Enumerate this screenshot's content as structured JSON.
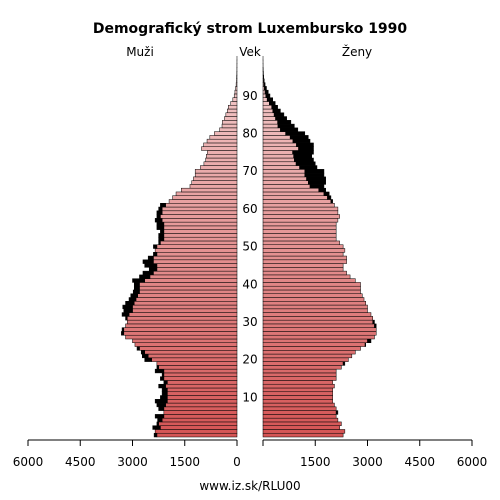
{
  "chart_data": {
    "type": "bar",
    "orientation": "horizontal",
    "title": "Demografický strom Luxembursko 1990",
    "left_label": "Muži",
    "center_label": "Vek",
    "right_label": "Ženy",
    "source": "www.iz.sk/RLU00",
    "x_ticks": [
      "6000",
      "4500",
      "3000",
      "1500",
      "0",
      "1500",
      "3000",
      "4500",
      "6000"
    ],
    "xlim": [
      0,
      6000
    ],
    "age_ticks": [
      "10",
      "20",
      "30",
      "40",
      "50",
      "60",
      "70",
      "80",
      "90"
    ],
    "ages": [
      0,
      1,
      2,
      3,
      4,
      5,
      6,
      7,
      8,
      9,
      10,
      11,
      12,
      13,
      14,
      15,
      16,
      17,
      18,
      19,
      20,
      21,
      22,
      23,
      24,
      25,
      26,
      27,
      28,
      29,
      30,
      31,
      32,
      33,
      34,
      35,
      36,
      37,
      38,
      39,
      40,
      41,
      42,
      43,
      44,
      45,
      46,
      47,
      48,
      49,
      50,
      51,
      52,
      53,
      54,
      55,
      56,
      57,
      58,
      59,
      60,
      61,
      62,
      63,
      64,
      65,
      66,
      67,
      68,
      69,
      70,
      71,
      72,
      73,
      74,
      75,
      76,
      77,
      78,
      79,
      80,
      81,
      82,
      83,
      84,
      85,
      86,
      87,
      88,
      89,
      90,
      91,
      92,
      93,
      94,
      95,
      96,
      97,
      98,
      99,
      100
    ],
    "series": [
      {
        "name": "Muži",
        "color": "#d55555",
        "values": [
          2380,
          2350,
          2420,
          2300,
          2280,
          2350,
          2100,
          2250,
          2300,
          2350,
          2200,
          2150,
          2150,
          2250,
          2100,
          2200,
          2150,
          2350,
          2300,
          2300,
          2650,
          2720,
          2750,
          2870,
          2930,
          3000,
          3200,
          3320,
          3300,
          3200,
          3150,
          3200,
          3300,
          3250,
          3280,
          3200,
          3100,
          3050,
          2980,
          2950,
          2950,
          3000,
          2800,
          2700,
          2520,
          2650,
          2700,
          2550,
          2400,
          2350,
          2400,
          2250,
          2250,
          2250,
          2200,
          2300,
          2300,
          2350,
          2300,
          2300,
          2250,
          2200,
          1950,
          1850,
          1750,
          1600,
          1350,
          1300,
          1250,
          1200,
          1200,
          1050,
          950,
          900,
          880,
          850,
          1020,
          960,
          860,
          780,
          650,
          500,
          430,
          420,
          360,
          320,
          280,
          250,
          180,
          120,
          80,
          60,
          40,
          25,
          15,
          10,
          6,
          4,
          3,
          2,
          1
        ]
      },
      {
        "name": "Ženy",
        "color": "#d55555",
        "values": [
          2300,
          2350,
          2200,
          2250,
          2150,
          2100,
          2150,
          2100,
          2050,
          2000,
          2000,
          2000,
          2000,
          2050,
          2000,
          2100,
          2100,
          2100,
          2250,
          2350,
          2450,
          2550,
          2650,
          2800,
          2950,
          3100,
          3200,
          3250,
          3250,
          3250,
          3200,
          3150,
          3100,
          3000,
          3000,
          2950,
          2900,
          2850,
          2800,
          2800,
          2800,
          2650,
          2500,
          2400,
          2300,
          2300,
          2400,
          2400,
          2300,
          2350,
          2300,
          2200,
          2100,
          2100,
          2100,
          2100,
          2100,
          2150,
          2200,
          2150,
          2150,
          2050,
          2000,
          1950,
          1900,
          1800,
          1750,
          1800,
          1800,
          1750,
          1750,
          1550,
          1500,
          1450,
          1400,
          1450,
          1450,
          1450,
          1350,
          1300,
          1200,
          1000,
          900,
          800,
          680,
          600,
          500,
          420,
          350,
          280,
          200,
          150,
          100,
          60,
          35,
          20,
          12,
          6,
          3,
          2,
          1
        ]
      }
    ],
    "excess": {
      "color": "#000000",
      "note": ""
    }
  }
}
